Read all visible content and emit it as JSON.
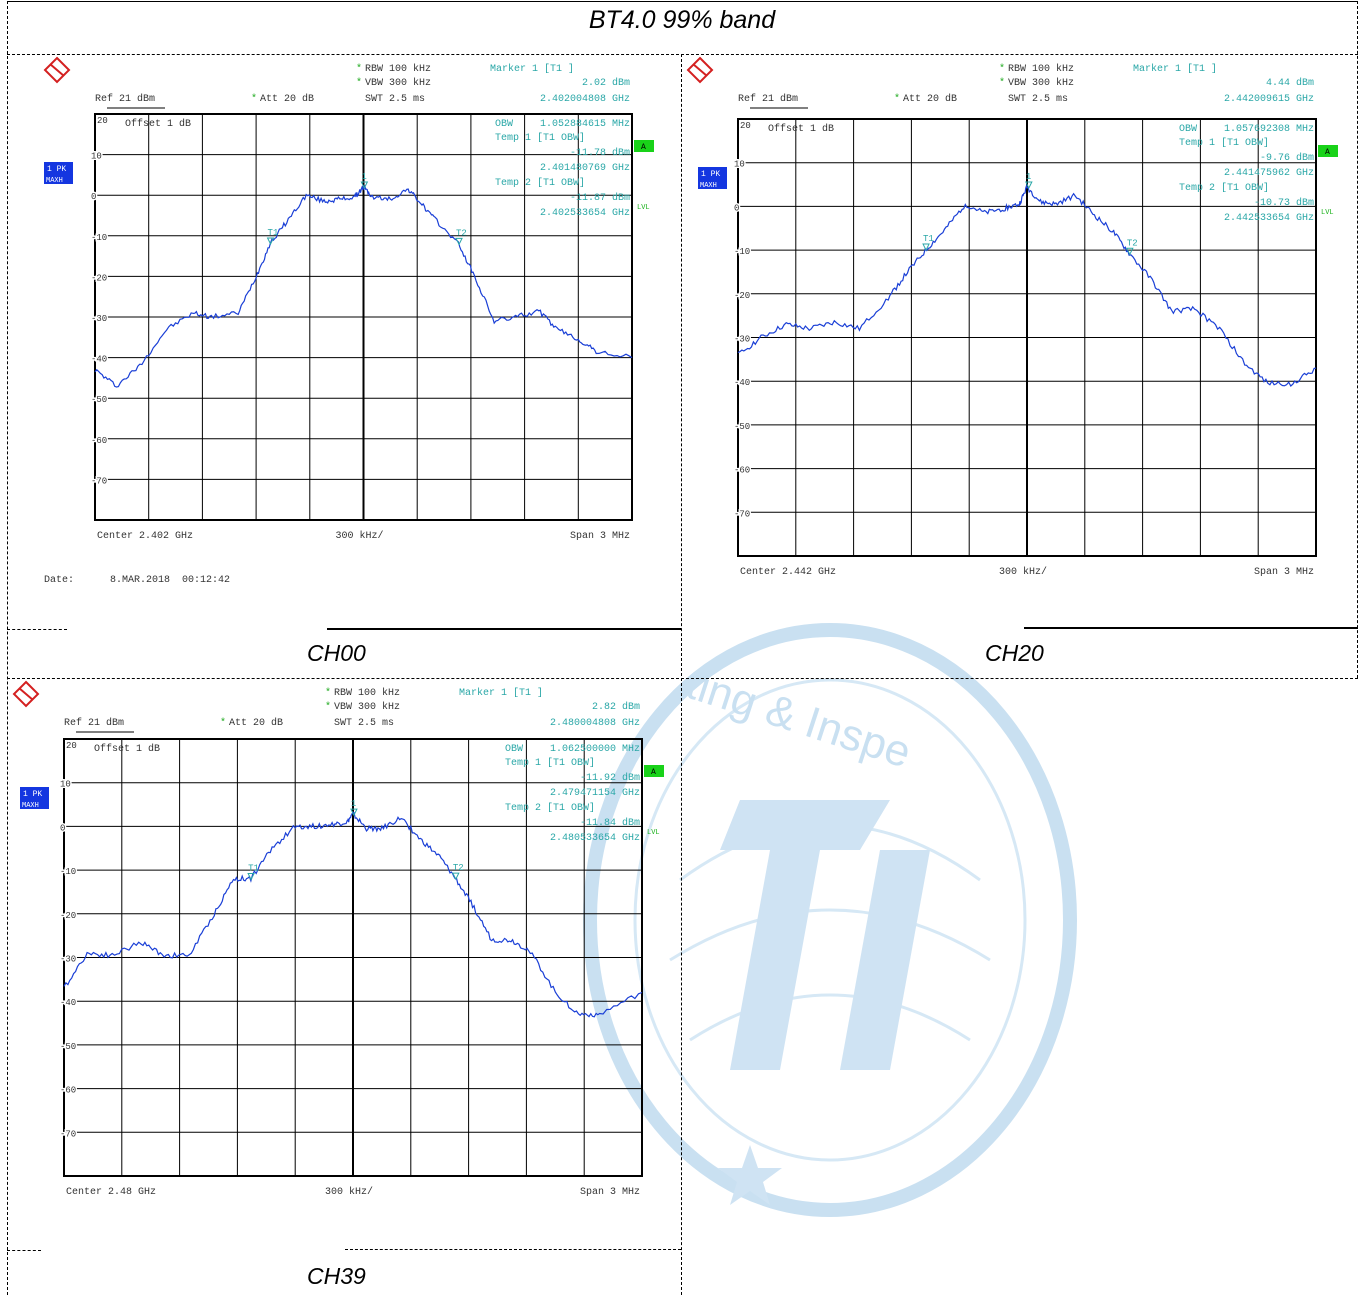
{
  "page": {
    "title": "BT4.0 99% band",
    "date_text": "Date:      8.MAR.2018  00:12:42",
    "watermark_text": "ting & Inspe"
  },
  "colors": {
    "trace": "#1a3fd6",
    "marker_text": "#2aa7a7",
    "badge": "#1436e0",
    "green_badge": "#19d219",
    "logo_red": "#d42020",
    "watermark": "#c9e0f1"
  },
  "panels": [
    {
      "caption": "CH00",
      "header": {
        "rbw": "RBW 100 kHz",
        "vbw": "VBW 300 kHz",
        "ref": "Ref  21 dBm",
        "att": "Att  20 dB",
        "swt": "SWT 2.5 ms",
        "marker_title": "Marker 1 [T1 ]",
        "marker_level": "2.02 dBm",
        "marker_freq": "2.402004808 GHz",
        "offset": "Offset  1 dB",
        "obw_label": "OBW",
        "obw_value": "1.052884615 MHz",
        "temp1_label": "Temp 1 [T1 OBW]",
        "temp1_level": "-11.78 dBm",
        "temp1_freq": "2.401480769 GHz",
        "temp2_label": "Temp 2 [T1 OBW]",
        "temp2_level": "-11.87 dBm",
        "temp2_freq": "2.402533654 GHz",
        "badge_pk": "1 PK",
        "badge_maxh": "MAXH",
        "badge_a": "A",
        "lvl": "LVL",
        "footer_center": "Center  2.402 GHz",
        "footer_div": "300 kHz/",
        "footer_span": "Span  3 MHz"
      }
    },
    {
      "caption": "CH20",
      "header": {
        "rbw": "RBW 100 kHz",
        "vbw": "VBW 300 kHz",
        "ref": "Ref  21 dBm",
        "att": "Att  20 dB",
        "swt": "SWT 2.5 ms",
        "marker_title": "Marker 1 [T1 ]",
        "marker_level": "4.44 dBm",
        "marker_freq": "2.442009615 GHz",
        "offset": "Offset  1 dB",
        "obw_label": "OBW",
        "obw_value": "1.057692308 MHz",
        "temp1_label": "Temp 1 [T1 OBW]",
        "temp1_level": "-9.76 dBm",
        "temp1_freq": "2.441475962 GHz",
        "temp2_label": "Temp 2 [T1 OBW]",
        "temp2_level": "-10.73 dBm",
        "temp2_freq": "2.442533654 GHz",
        "badge_pk": "1 PK",
        "badge_maxh": "MAXH",
        "badge_a": "A",
        "lvl": "LVL",
        "footer_center": "Center  2.442 GHz",
        "footer_div": "300 kHz/",
        "footer_span": "Span  3 MHz"
      }
    },
    {
      "caption": "CH39",
      "header": {
        "rbw": "RBW 100 kHz",
        "vbw": "VBW 300 kHz",
        "ref": "Ref  21 dBm",
        "att": "Att  20 dB",
        "swt": "SWT 2.5 ms",
        "marker_title": "Marker 1 [T1 ]",
        "marker_level": "2.82 dBm",
        "marker_freq": "2.480004808 GHz",
        "offset": "Offset  1 dB",
        "obw_label": "OBW",
        "obw_value": "1.062500000 MHz",
        "temp1_label": "Temp 1 [T1 OBW]",
        "temp1_level": "-11.92 dBm",
        "temp1_freq": "2.479471154 GHz",
        "temp2_label": "Temp 2 [T1 OBW]",
        "temp2_level": "-11.84 dBm",
        "temp2_freq": "2.480533654 GHz",
        "badge_pk": "1 PK",
        "badge_maxh": "MAXH",
        "badge_a": "A",
        "lvl": "LVL",
        "footer_center": "Center  2.48 GHz",
        "footer_div": "300 kHz/",
        "footer_span": "Span  3 MHz"
      }
    }
  ],
  "chart_data": [
    {
      "type": "line",
      "title": "CH00",
      "xlabel": "300 kHz/",
      "ylabel": "dBm",
      "xlim": [
        2.4005,
        2.4035
      ],
      "ylim": [
        -80,
        20
      ],
      "yticks": [
        20,
        10,
        0,
        -10,
        -20,
        -30,
        -40,
        -50,
        -60,
        -70
      ],
      "grid": true,
      "x_unit": "GHz",
      "series": [
        {
          "x": [
            2.4005,
            2.40062,
            2.40075,
            2.4009,
            2.40105,
            2.40115,
            2.4013,
            2.4014,
            2.40148,
            2.40158,
            2.40168,
            2.40178,
            2.40186,
            2.40195,
            2.402,
            2.40205,
            2.40215,
            2.40225,
            2.40232,
            2.4024,
            2.40253,
            2.40262,
            2.40273,
            2.40285,
            2.40298,
            2.40308,
            2.4032,
            2.4033,
            2.4035
          ],
          "y": [
            -43,
            -47,
            -42,
            -33,
            -29,
            -30,
            -29,
            -20,
            -11.8,
            -6,
            0,
            -1.5,
            -1,
            -0.5,
            2.02,
            -0.5,
            -1,
            1.5,
            -2,
            -6,
            -11.9,
            -20,
            -31,
            -30,
            -28.5,
            -33,
            -35.5,
            -38.5,
            -40
          ]
        }
      ],
      "markers": [
        {
          "label": "1",
          "x": 2.402004808,
          "y": 2.02
        },
        {
          "label": "T1",
          "x": 2.401480769,
          "y": -11.78
        },
        {
          "label": "T2",
          "x": 2.402533654,
          "y": -11.87
        }
      ]
    },
    {
      "type": "line",
      "title": "CH20",
      "xlabel": "300 kHz/",
      "ylabel": "dBm",
      "xlim": [
        2.4405,
        2.4435
      ],
      "ylim": [
        -80,
        20
      ],
      "yticks": [
        20,
        10,
        0,
        -10,
        -20,
        -30,
        -40,
        -50,
        -60,
        -70
      ],
      "grid": true,
      "x_unit": "GHz",
      "series": [
        {
          "x": [
            2.4405,
            2.44062,
            2.44075,
            2.44087,
            2.441,
            2.44113,
            2.44128,
            2.44138,
            2.44148,
            2.44158,
            2.44168,
            2.44178,
            2.44188,
            2.44196,
            2.442,
            2.44207,
            2.44215,
            2.44225,
            2.44235,
            2.44245,
            2.44253,
            2.44265,
            2.44275,
            2.44287,
            2.443,
            2.44313,
            2.44325,
            2.44338,
            2.4435
          ],
          "y": [
            -34,
            -30,
            -27,
            -28,
            -26.5,
            -28,
            -21,
            -15,
            -9.8,
            -5,
            0.5,
            -1.5,
            -0.5,
            0.5,
            4.44,
            1,
            0.5,
            2.5,
            -2,
            -6,
            -10.7,
            -17,
            -24,
            -23.5,
            -28,
            -36,
            -40.5,
            -40.5,
            -37
          ]
        }
      ],
      "markers": [
        {
          "label": "1",
          "x": 2.442009615,
          "y": 4.44
        },
        {
          "label": "T1",
          "x": 2.441475962,
          "y": -9.76
        },
        {
          "label": "T2",
          "x": 2.442533654,
          "y": -10.73
        }
      ]
    },
    {
      "type": "line",
      "title": "CH39",
      "xlabel": "300 kHz/",
      "ylabel": "dBm",
      "xlim": [
        2.4785,
        2.4815
      ],
      "ylim": [
        -80,
        20
      ],
      "yticks": [
        20,
        10,
        0,
        -10,
        -20,
        -30,
        -40,
        -50,
        -60,
        -70
      ],
      "grid": true,
      "x_unit": "GHz",
      "series": [
        {
          "x": [
            2.4785,
            2.47862,
            2.47875,
            2.4789,
            2.47902,
            2.47915,
            2.47928,
            2.47938,
            2.47947,
            2.47958,
            2.4797,
            2.4798,
            2.4799,
            2.47997,
            2.48,
            2.48007,
            2.48015,
            2.48025,
            2.48035,
            2.48045,
            2.48053,
            2.48062,
            2.48072,
            2.48082,
            2.48092,
            2.48105,
            2.48117,
            2.48128,
            2.4815
          ],
          "y": [
            -37,
            -29,
            -29.5,
            -26.5,
            -29.5,
            -29.5,
            -20,
            -12,
            -11.9,
            -5,
            0,
            0,
            0.5,
            1,
            2.82,
            -0.5,
            -0.5,
            2,
            -3,
            -7,
            -11.8,
            -18,
            -26,
            -26,
            -28.5,
            -38,
            -43,
            -43,
            -38
          ]
        }
      ],
      "markers": [
        {
          "label": "1",
          "x": 2.480004808,
          "y": 2.82
        },
        {
          "label": "T1",
          "x": 2.479471154,
          "y": -11.92
        },
        {
          "label": "T2",
          "x": 2.480533654,
          "y": -11.84
        }
      ]
    }
  ]
}
